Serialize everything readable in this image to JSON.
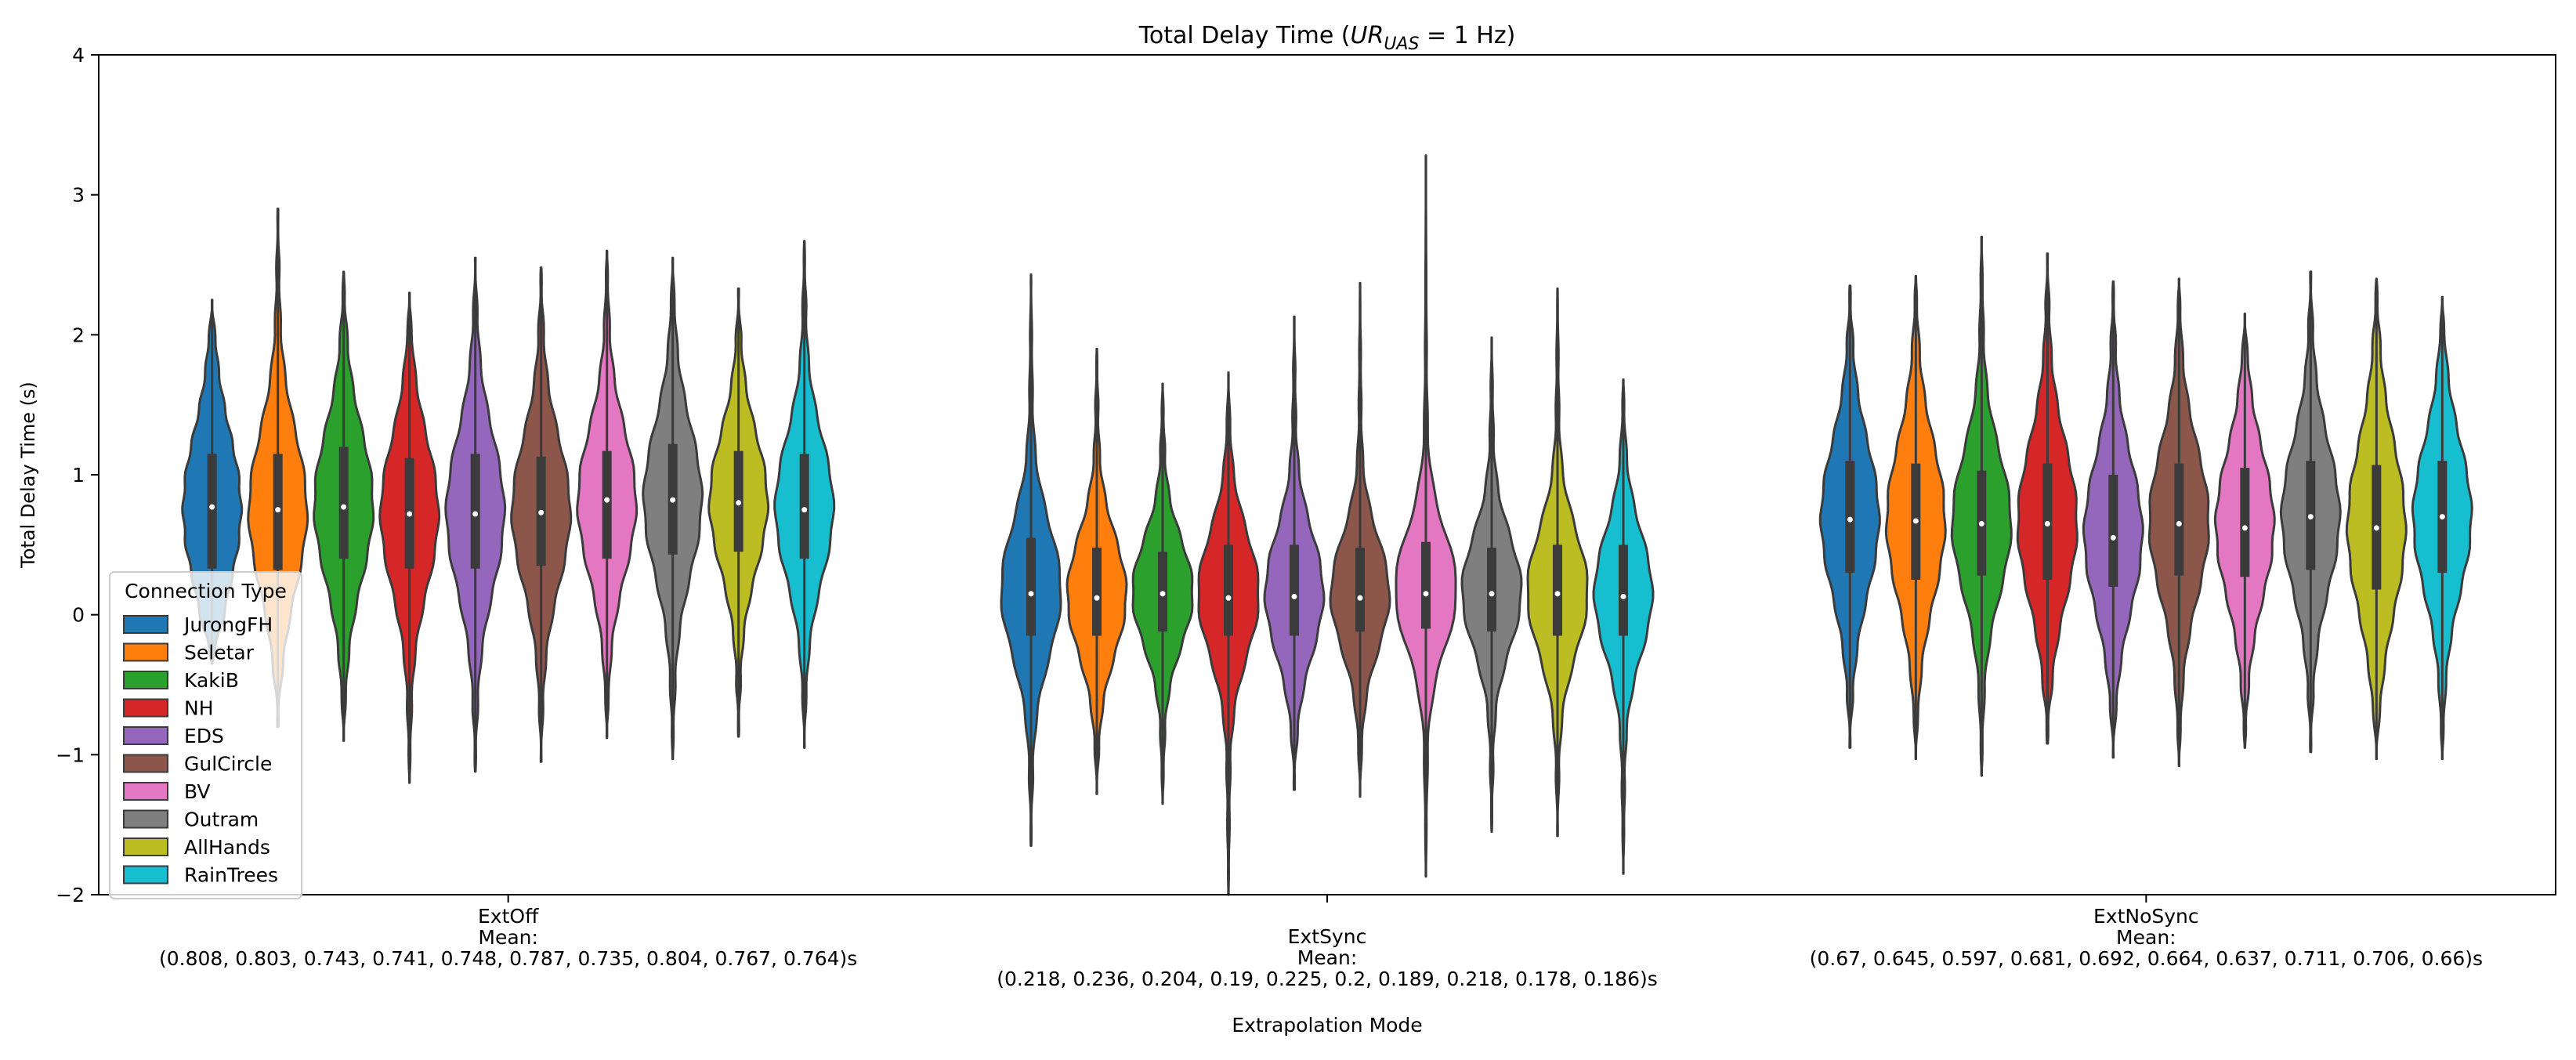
{
  "chart_data": {
    "type": "violin",
    "title": "Total Delay Time (",
    "title_math": "UR",
    "title_sub": "UAS",
    "title_tail": " = 1 Hz)",
    "xlabel": "Extrapolation Mode",
    "ylabel": "Total Delay Time (s)",
    "ylim": [
      -2,
      4
    ],
    "yticks": [
      "4",
      "3",
      "2",
      "1",
      "0",
      "−1",
      "−2"
    ],
    "ytick_values": [
      4,
      3,
      2,
      1,
      0,
      -1,
      -2
    ],
    "grid": false,
    "legend": {
      "title": "Connection Type",
      "placement": "lower-left",
      "entries": [
        "JurongFH",
        "Seletar",
        "KakiB",
        "NH",
        "EDS",
        "GulCircle",
        "BV",
        "Outram",
        "AllHands",
        "RainTrees"
      ]
    },
    "colors": [
      "#1f77b4",
      "#ff7f0e",
      "#2ca02c",
      "#d62728",
      "#9467bd",
      "#8c564b",
      "#e377c2",
      "#7f7f7f",
      "#bcbd22",
      "#17becf"
    ],
    "categories": [
      {
        "name": "ExtOff",
        "mean_label": "Mean:",
        "mean_values": "(0.808, 0.803, 0.743, 0.741, 0.748, 0.787, 0.735, 0.804, 0.767, 0.764)s",
        "violins": [
          {
            "min": -0.35,
            "max": 2.25,
            "median": 0.77,
            "q1": 0.33,
            "q3": 1.15
          },
          {
            "min": -0.8,
            "max": 2.9,
            "median": 0.75,
            "q1": 0.32,
            "q3": 1.15
          },
          {
            "min": -0.9,
            "max": 2.45,
            "median": 0.77,
            "q1": 0.4,
            "q3": 1.2
          },
          {
            "min": -1.2,
            "max": 2.3,
            "median": 0.72,
            "q1": 0.33,
            "q3": 1.12
          },
          {
            "min": -1.12,
            "max": 2.55,
            "median": 0.72,
            "q1": 0.33,
            "q3": 1.15
          },
          {
            "min": -1.05,
            "max": 2.48,
            "median": 0.73,
            "q1": 0.35,
            "q3": 1.13
          },
          {
            "min": -0.88,
            "max": 2.6,
            "median": 0.82,
            "q1": 0.4,
            "q3": 1.17
          },
          {
            "min": -1.03,
            "max": 2.55,
            "median": 0.82,
            "q1": 0.43,
            "q3": 1.22
          },
          {
            "min": -0.87,
            "max": 2.33,
            "median": 0.8,
            "q1": 0.45,
            "q3": 1.17
          },
          {
            "min": -0.95,
            "max": 2.67,
            "median": 0.75,
            "q1": 0.4,
            "q3": 1.15
          }
        ]
      },
      {
        "name": "ExtSync",
        "mean_label": "Mean:",
        "mean_values": "(0.218, 0.236, 0.204, 0.19, 0.225, 0.2, 0.189, 0.218, 0.178, 0.186)s",
        "violins": [
          {
            "min": -1.65,
            "max": 2.43,
            "median": 0.15,
            "q1": -0.15,
            "q3": 0.55
          },
          {
            "min": -1.28,
            "max": 1.9,
            "median": 0.12,
            "q1": -0.15,
            "q3": 0.48
          },
          {
            "min": -1.35,
            "max": 1.65,
            "median": 0.15,
            "q1": -0.12,
            "q3": 0.45
          },
          {
            "min": -2.0,
            "max": 1.73,
            "median": 0.12,
            "q1": -0.15,
            "q3": 0.5
          },
          {
            "min": -1.25,
            "max": 2.13,
            "median": 0.13,
            "q1": -0.15,
            "q3": 0.5
          },
          {
            "min": -1.3,
            "max": 2.37,
            "median": 0.12,
            "q1": -0.12,
            "q3": 0.48
          },
          {
            "min": -1.87,
            "max": 3.28,
            "median": 0.15,
            "q1": -0.1,
            "q3": 0.52
          },
          {
            "min": -1.55,
            "max": 1.98,
            "median": 0.15,
            "q1": -0.12,
            "q3": 0.48
          },
          {
            "min": -1.58,
            "max": 2.33,
            "median": 0.15,
            "q1": -0.15,
            "q3": 0.5
          },
          {
            "min": -1.85,
            "max": 1.68,
            "median": 0.13,
            "q1": -0.15,
            "q3": 0.5
          }
        ]
      },
      {
        "name": "ExtNoSync",
        "mean_label": "Mean:",
        "mean_values": "(0.67, 0.645, 0.597, 0.681, 0.692, 0.664, 0.637, 0.711, 0.706, 0.66)s",
        "violins": [
          {
            "min": -0.95,
            "max": 2.35,
            "median": 0.68,
            "q1": 0.3,
            "q3": 1.1
          },
          {
            "min": -1.03,
            "max": 2.42,
            "median": 0.67,
            "q1": 0.25,
            "q3": 1.08
          },
          {
            "min": -1.15,
            "max": 2.7,
            "median": 0.65,
            "q1": 0.28,
            "q3": 1.03
          },
          {
            "min": -0.92,
            "max": 2.58,
            "median": 0.65,
            "q1": 0.25,
            "q3": 1.08
          },
          {
            "min": -1.02,
            "max": 2.38,
            "median": 0.55,
            "q1": 0.2,
            "q3": 1.0
          },
          {
            "min": -1.08,
            "max": 2.4,
            "median": 0.65,
            "q1": 0.28,
            "q3": 1.08
          },
          {
            "min": -0.95,
            "max": 2.15,
            "median": 0.62,
            "q1": 0.27,
            "q3": 1.05
          },
          {
            "min": -0.98,
            "max": 2.45,
            "median": 0.7,
            "q1": 0.32,
            "q3": 1.1
          },
          {
            "min": -1.03,
            "max": 2.4,
            "median": 0.62,
            "q1": 0.18,
            "q3": 1.07
          },
          {
            "min": -1.03,
            "max": 2.27,
            "median": 0.7,
            "q1": 0.3,
            "q3": 1.1
          }
        ]
      }
    ]
  }
}
